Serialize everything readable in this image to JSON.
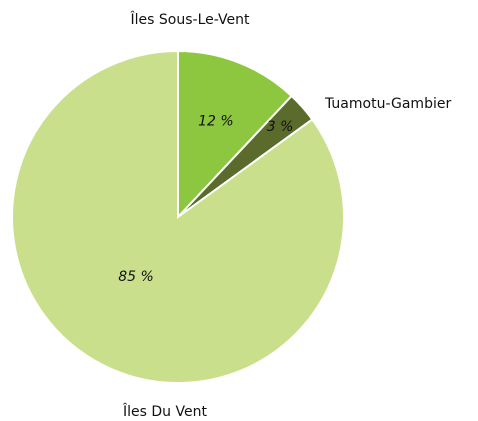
{
  "chart_data": {
    "type": "pie",
    "categories": [
      "Îles Sous-Le-Vent",
      "Tuamotu-Gambier",
      "Îles Du Vent"
    ],
    "values": [
      12,
      3,
      85
    ],
    "value_labels": [
      "12 %",
      "3 %",
      "85 %"
    ],
    "colors": [
      "#8dc63f",
      "#5b6b2c",
      "#c9df8c"
    ]
  }
}
